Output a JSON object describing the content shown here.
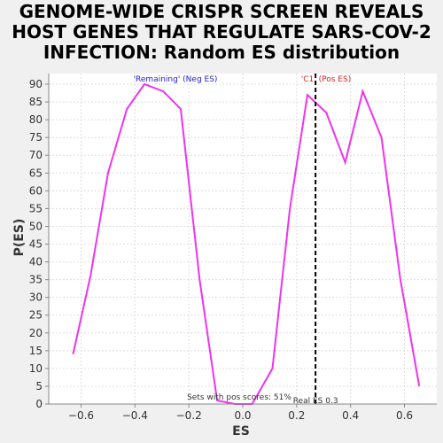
{
  "chart_data": {
    "type": "line",
    "title": [
      "GENOME-WIDE CRISPR SCREEN REVEALS",
      "HOST GENES THAT REGULATE SARS-COV-2",
      "INFECTION: Random ES distribution"
    ],
    "xlabel": "ES",
    "ylabel": "P(ES)",
    "xlim": [
      -0.72,
      0.72
    ],
    "ylim": [
      0,
      93
    ],
    "xticks": [
      -0.6,
      -0.4,
      -0.2,
      0.0,
      0.2,
      0.4,
      0.6
    ],
    "yticks": [
      0,
      5,
      10,
      15,
      20,
      25,
      30,
      35,
      40,
      45,
      50,
      55,
      60,
      65,
      70,
      75,
      80,
      85,
      90
    ],
    "grid": true,
    "series": [
      {
        "color": "#ee33ee",
        "x": [
          -0.63,
          -0.565,
          -0.5,
          -0.43,
          -0.365,
          -0.295,
          -0.23,
          -0.16,
          -0.095,
          -0.03,
          0.035,
          0.11,
          0.175,
          0.24,
          0.31,
          0.38,
          0.445,
          0.515,
          0.585,
          0.655
        ],
        "y": [
          14,
          36,
          65,
          83,
          90,
          88,
          83,
          35,
          1,
          0,
          0,
          10,
          55,
          87,
          82,
          68,
          88,
          75,
          35,
          5
        ]
      }
    ],
    "real_es": {
      "value": 0.27,
      "label": "Real ES 0.3"
    },
    "annotations": {
      "neg": {
        "text": "'Remaining' (Neg ES)",
        "color": "#2222cc"
      },
      "pos": {
        "text": "'C1' (Pos ES)",
        "color": "#dd2222"
      },
      "pos_scores": "Sets with pos scores: 51%"
    }
  }
}
